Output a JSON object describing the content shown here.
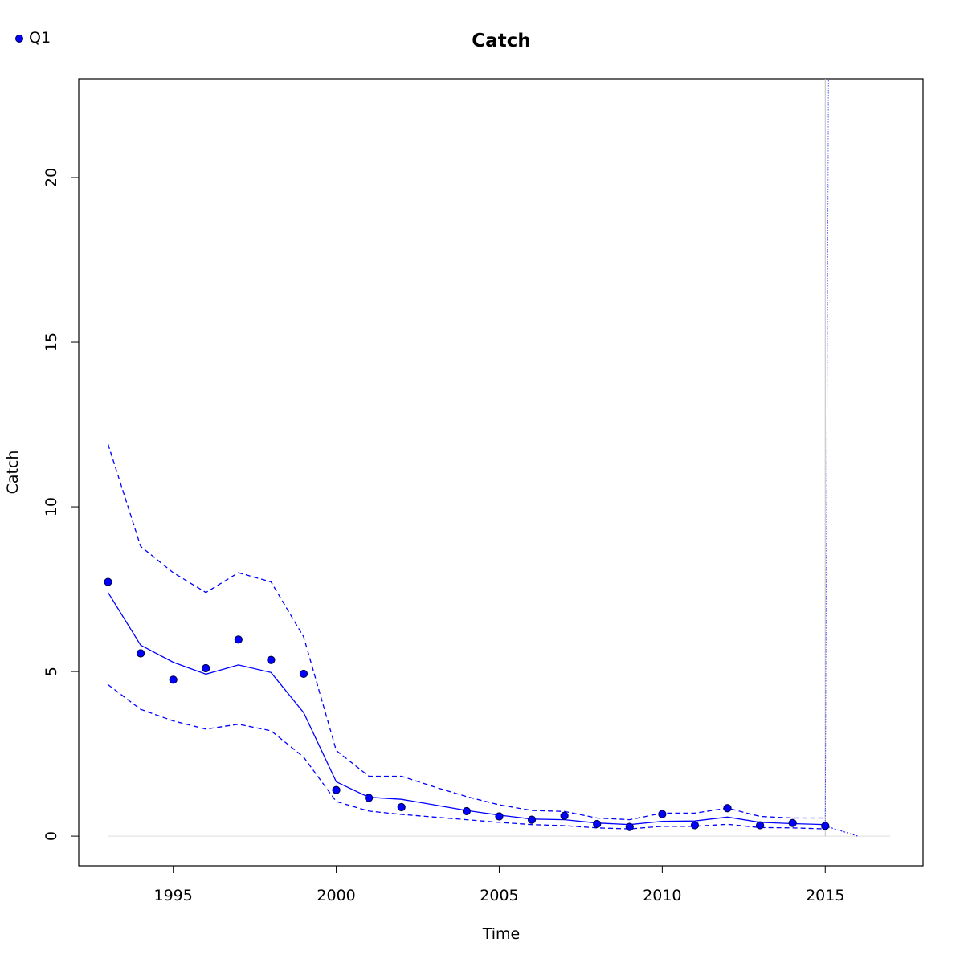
{
  "chart_data": {
    "type": "line",
    "title": "Catch",
    "xlabel": "Time",
    "ylabel": "Catch",
    "xlim": [
      1992.1,
      2018.0
    ],
    "ylim": [
      -0.9,
      23.0
    ],
    "x_ticks": [
      1995,
      2000,
      2005,
      2010,
      2015
    ],
    "y_ticks": [
      0,
      5,
      10,
      15,
      20
    ],
    "legend": {
      "position": "top-left",
      "entries": [
        {
          "label": "Q1",
          "color": "#0000ff",
          "marker": "filled-circle"
        }
      ]
    },
    "colors": {
      "series": "#0000ff",
      "point_fill": "#0000ff",
      "point_edge": "#000040",
      "reference": "#bebebe"
    },
    "observed_points": {
      "x": [
        1993,
        1994,
        1995,
        1996,
        1997,
        1998,
        1999,
        2000,
        2001,
        2002,
        2004,
        2005,
        2006,
        2007,
        2008,
        2009,
        2010,
        2011,
        2012,
        2013,
        2014,
        2015
      ],
      "y": [
        7.72,
        5.55,
        4.75,
        5.1,
        5.97,
        5.35,
        4.93,
        1.4,
        1.16,
        0.88,
        0.76,
        0.6,
        0.5,
        0.62,
        0.37,
        0.28,
        0.67,
        0.33,
        0.85,
        0.33,
        0.4,
        0.31
      ]
    },
    "fitted": {
      "x": [
        1993,
        1994,
        1995,
        1996,
        1997,
        1998,
        1999,
        2000,
        2001,
        2002,
        2003,
        2004,
        2005,
        2006,
        2007,
        2008,
        2009,
        2010,
        2011,
        2012,
        2013,
        2014,
        2015
      ],
      "y": [
        7.4,
        5.8,
        5.28,
        4.92,
        5.2,
        4.97,
        3.75,
        1.65,
        1.18,
        1.12,
        0.95,
        0.78,
        0.64,
        0.52,
        0.5,
        0.4,
        0.35,
        0.45,
        0.46,
        0.58,
        0.42,
        0.38,
        0.35
      ]
    },
    "upper": {
      "x": [
        1993,
        1994,
        1995,
        1996,
        1997,
        1998,
        1999,
        2000,
        2001,
        2002,
        2003,
        2004,
        2005,
        2006,
        2007,
        2008,
        2009,
        2010,
        2011,
        2012,
        2013,
        2014,
        2015
      ],
      "y": [
        11.9,
        8.8,
        8.0,
        7.4,
        8.0,
        7.72,
        6.05,
        2.6,
        1.82,
        1.82,
        1.5,
        1.2,
        0.95,
        0.78,
        0.75,
        0.55,
        0.5,
        0.7,
        0.7,
        0.85,
        0.6,
        0.55,
        0.55
      ]
    },
    "lower": {
      "x": [
        1993,
        1994,
        1995,
        1996,
        1997,
        1998,
        1999,
        2000,
        2001,
        2002,
        2003,
        2004,
        2005,
        2006,
        2007,
        2008,
        2009,
        2010,
        2011,
        2012,
        2013,
        2014,
        2015
      ],
      "y": [
        4.6,
        3.85,
        3.5,
        3.25,
        3.4,
        3.2,
        2.4,
        1.05,
        0.76,
        0.66,
        0.58,
        0.5,
        0.42,
        0.35,
        0.32,
        0.25,
        0.22,
        0.3,
        0.3,
        0.36,
        0.26,
        0.25,
        0.22
      ]
    },
    "projection": {
      "x": [
        2015,
        2016
      ],
      "y": [
        0.31,
        0.0
      ]
    },
    "reference_lines": {
      "horizontal_y": 0,
      "horizontal_x_range": [
        1993,
        2017
      ],
      "vertical_x": 2015
    },
    "dotted_spike": {
      "x": [
        2015,
        2015.1
      ],
      "y": [
        0.31,
        23.0
      ]
    }
  }
}
